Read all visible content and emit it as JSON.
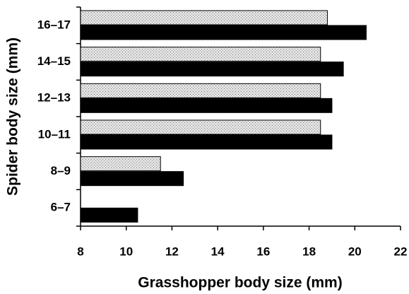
{
  "chart_data": {
    "type": "hbar",
    "xlabel": "Grasshopper body size (mm)",
    "ylabel": "Spider body size (mm)",
    "categories": [
      "6–7",
      "8–9",
      "10–11",
      "12–13",
      "14–15",
      "16–17"
    ],
    "series": [
      {
        "color": "#e2e2e2",
        "values": [
          null,
          11.5,
          18.5,
          18.5,
          18.5,
          18.8
        ]
      },
      {
        "color": "#000000",
        "values": [
          10.5,
          12.5,
          19,
          19,
          19.5,
          20.5
        ]
      }
    ],
    "xlim": [
      8,
      22
    ],
    "xticks": [
      8,
      10,
      12,
      14,
      16,
      18,
      20,
      22
    ]
  }
}
